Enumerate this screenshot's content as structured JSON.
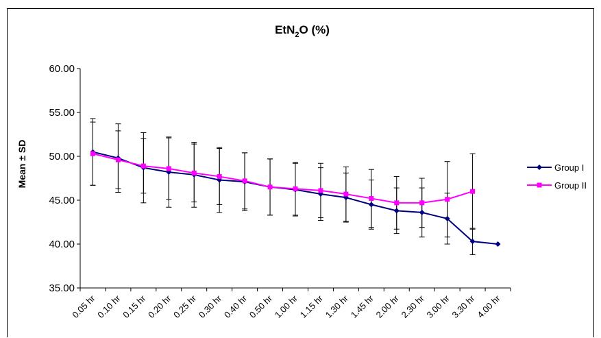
{
  "chart_data": {
    "type": "line",
    "title_main": "EtN",
    "title_sub": "2",
    "title_tail": "O (%)",
    "ylabel": "Mean ± SD",
    "xlabel": "",
    "ylim": [
      35,
      60
    ],
    "yticks": [
      "35.00",
      "40.00",
      "45.00",
      "50.00",
      "55.00",
      "60.00"
    ],
    "ytick_values": [
      35,
      40,
      45,
      50,
      55,
      60
    ],
    "categories": [
      "0.05 hr",
      "0.10 hr",
      "0.15 hr",
      "0.20 hr",
      "0.25 hr",
      "0.30 hr",
      "0.40 hr",
      "0.50 hr",
      "1.00 hr",
      "1.15 hr",
      "1.30 hr",
      "1.45 hr",
      "2.00 hr",
      "2.30 hr",
      "3.00 hr",
      "3.30 hr",
      "4.00 hr"
    ],
    "grid": false,
    "legend_position": "right",
    "series": [
      {
        "name": "Group I",
        "color": "#000080",
        "marker": "diamond",
        "values": [
          50.5,
          49.8,
          48.7,
          48.2,
          47.9,
          47.3,
          47.1,
          46.5,
          46.2,
          45.7,
          45.3,
          44.5,
          43.8,
          43.6,
          42.9,
          40.3,
          40.0
        ],
        "sd": [
          3.8,
          3.9,
          4.0,
          4.0,
          3.7,
          3.7,
          3.3,
          3.2,
          3.0,
          3.0,
          2.8,
          2.8,
          2.6,
          2.8,
          2.9,
          1.5,
          null
        ]
      },
      {
        "name": "Group II",
        "color": "#ff00ff",
        "marker": "square",
        "values": [
          50.3,
          49.6,
          48.9,
          48.6,
          48.1,
          47.7,
          47.2,
          46.5,
          46.3,
          46.1,
          45.7,
          45.2,
          44.7,
          44.7,
          45.1,
          46.0,
          null
        ],
        "sd": [
          3.6,
          3.3,
          3.1,
          3.5,
          3.3,
          3.2,
          3.2,
          3.2,
          3.0,
          3.1,
          3.1,
          3.3,
          3.0,
          2.8,
          4.3,
          4.3,
          null
        ]
      }
    ]
  }
}
